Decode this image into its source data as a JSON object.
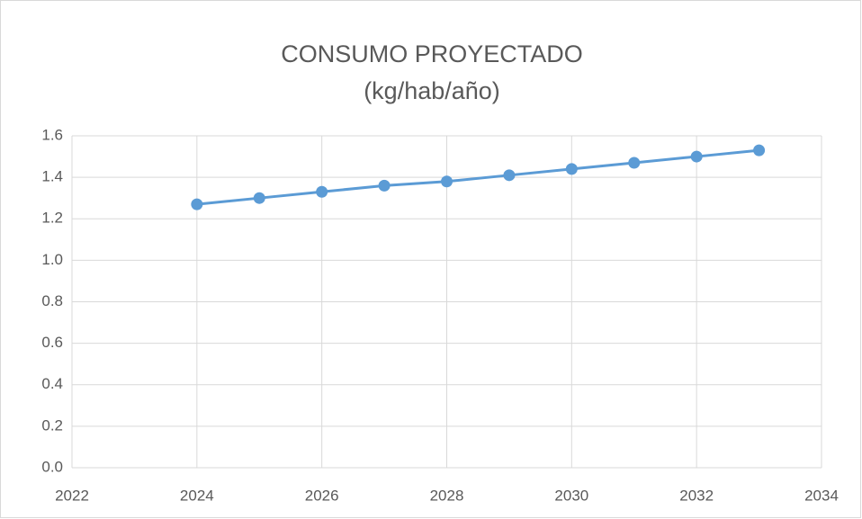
{
  "chart_data": {
    "type": "line",
    "title": "CONSUMO PROYECTADO",
    "subtitle": "(kg/hab/año)",
    "x": [
      2024,
      2025,
      2026,
      2027,
      2028,
      2029,
      2030,
      2031,
      2032,
      2033
    ],
    "series": [
      {
        "color": "#5b9bd5",
        "values": [
          1.27,
          1.3,
          1.33,
          1.36,
          1.38,
          1.41,
          1.44,
          1.47,
          1.5,
          1.53
        ]
      }
    ],
    "xlim": [
      2022,
      2034
    ],
    "xticks": [
      2022,
      2024,
      2026,
      2028,
      2030,
      2032,
      2034
    ],
    "ylim": [
      0,
      1.6
    ],
    "yticks": [
      {
        "value": 0,
        "label": "0.0"
      },
      0.2,
      0.4,
      0.6,
      0.8,
      {
        "value": 1,
        "label": "1.0"
      },
      1.2,
      1.4,
      1.6
    ],
    "grid": true
  }
}
